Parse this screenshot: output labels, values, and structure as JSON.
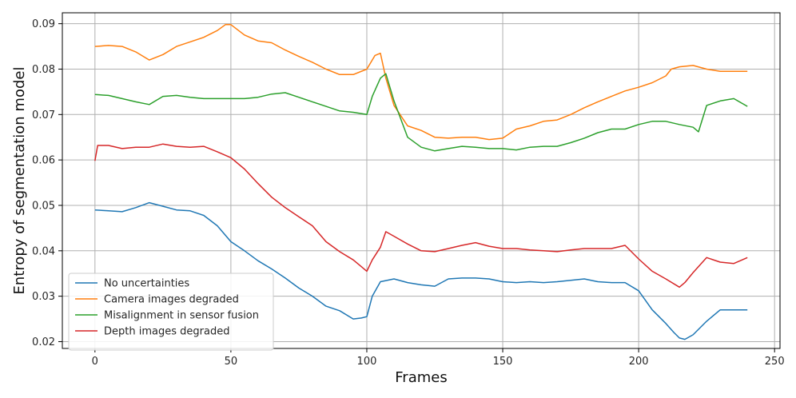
{
  "chart_data": {
    "type": "line",
    "title": "",
    "xlabel": "Frames",
    "ylabel": "Entropy of segmentation model",
    "xlim": [
      -12,
      252
    ],
    "ylim": [
      0.0185,
      0.0924
    ],
    "x_ticks": [
      0,
      50,
      100,
      150,
      200,
      250
    ],
    "y_ticks": [
      0.02,
      0.03,
      0.04,
      0.05,
      0.06,
      0.07,
      0.08,
      0.09
    ],
    "x_tick_labels": [
      "0",
      "50",
      "100",
      "150",
      "200",
      "250"
    ],
    "y_tick_labels": [
      "0.02",
      "0.03",
      "0.04",
      "0.05",
      "0.06",
      "0.07",
      "0.08",
      "0.09"
    ],
    "grid": true,
    "legend_position": "lower-left",
    "series": [
      {
        "name": "No uncertainties",
        "color": "#1f77b4",
        "points": [
          [
            0,
            0.049
          ],
          [
            5,
            0.0488
          ],
          [
            10,
            0.0486
          ],
          [
            15,
            0.0495
          ],
          [
            20,
            0.0506
          ],
          [
            25,
            0.0498
          ],
          [
            30,
            0.049
          ],
          [
            35,
            0.0488
          ],
          [
            40,
            0.0478
          ],
          [
            45,
            0.0455
          ],
          [
            50,
            0.042
          ],
          [
            55,
            0.04
          ],
          [
            60,
            0.0378
          ],
          [
            65,
            0.036
          ],
          [
            70,
            0.034
          ],
          [
            75,
            0.0318
          ],
          [
            80,
            0.03
          ],
          [
            85,
            0.0278
          ],
          [
            90,
            0.0268
          ],
          [
            95,
            0.025
          ],
          [
            98,
            0.0252
          ],
          [
            100,
            0.0255
          ],
          [
            102,
            0.03
          ],
          [
            105,
            0.0332
          ],
          [
            110,
            0.0338
          ],
          [
            115,
            0.033
          ],
          [
            120,
            0.0325
          ],
          [
            125,
            0.0322
          ],
          [
            130,
            0.0338
          ],
          [
            135,
            0.034
          ],
          [
            140,
            0.034
          ],
          [
            145,
            0.0338
          ],
          [
            150,
            0.0332
          ],
          [
            155,
            0.033
          ],
          [
            160,
            0.0332
          ],
          [
            165,
            0.033
          ],
          [
            170,
            0.0332
          ],
          [
            175,
            0.0335
          ],
          [
            180,
            0.0338
          ],
          [
            185,
            0.0332
          ],
          [
            190,
            0.033
          ],
          [
            195,
            0.033
          ],
          [
            200,
            0.0312
          ],
          [
            205,
            0.027
          ],
          [
            210,
            0.024
          ],
          [
            213,
            0.022
          ],
          [
            215,
            0.0208
          ],
          [
            217,
            0.0205
          ],
          [
            220,
            0.0215
          ],
          [
            225,
            0.0245
          ],
          [
            230,
            0.027
          ],
          [
            235,
            0.027
          ],
          [
            240,
            0.027
          ]
        ]
      },
      {
        "name": "Camera images degraded",
        "color": "#ff7f0e",
        "points": [
          [
            0,
            0.085
          ],
          [
            5,
            0.0852
          ],
          [
            10,
            0.085
          ],
          [
            15,
            0.0838
          ],
          [
            20,
            0.082
          ],
          [
            25,
            0.0832
          ],
          [
            30,
            0.085
          ],
          [
            35,
            0.086
          ],
          [
            40,
            0.087
          ],
          [
            45,
            0.0885
          ],
          [
            48,
            0.0898
          ],
          [
            50,
            0.0898
          ],
          [
            55,
            0.0875
          ],
          [
            60,
            0.0862
          ],
          [
            65,
            0.0858
          ],
          [
            70,
            0.0842
          ],
          [
            75,
            0.0828
          ],
          [
            80,
            0.0815
          ],
          [
            85,
            0.08
          ],
          [
            90,
            0.0788
          ],
          [
            95,
            0.0788
          ],
          [
            100,
            0.08
          ],
          [
            103,
            0.083
          ],
          [
            105,
            0.0835
          ],
          [
            107,
            0.078
          ],
          [
            110,
            0.072
          ],
          [
            115,
            0.0675
          ],
          [
            120,
            0.0665
          ],
          [
            125,
            0.065
          ],
          [
            130,
            0.0648
          ],
          [
            135,
            0.065
          ],
          [
            140,
            0.065
          ],
          [
            145,
            0.0645
          ],
          [
            150,
            0.0648
          ],
          [
            155,
            0.0668
          ],
          [
            160,
            0.0675
          ],
          [
            165,
            0.0685
          ],
          [
            170,
            0.0688
          ],
          [
            175,
            0.07
          ],
          [
            180,
            0.0715
          ],
          [
            185,
            0.0728
          ],
          [
            190,
            0.074
          ],
          [
            195,
            0.0752
          ],
          [
            200,
            0.076
          ],
          [
            205,
            0.077
          ],
          [
            210,
            0.0785
          ],
          [
            212,
            0.08
          ],
          [
            215,
            0.0805
          ],
          [
            220,
            0.0808
          ],
          [
            225,
            0.08
          ],
          [
            230,
            0.0795
          ],
          [
            235,
            0.0795
          ],
          [
            240,
            0.0795
          ]
        ]
      },
      {
        "name": "Misalignment in sensor fusion",
        "color": "#2ca02c",
        "points": [
          [
            0,
            0.0744
          ],
          [
            5,
            0.0742
          ],
          [
            10,
            0.0735
          ],
          [
            15,
            0.0728
          ],
          [
            20,
            0.0722
          ],
          [
            25,
            0.074
          ],
          [
            30,
            0.0742
          ],
          [
            35,
            0.0738
          ],
          [
            40,
            0.0735
          ],
          [
            45,
            0.0735
          ],
          [
            50,
            0.0735
          ],
          [
            55,
            0.0735
          ],
          [
            60,
            0.0738
          ],
          [
            65,
            0.0745
          ],
          [
            70,
            0.0748
          ],
          [
            75,
            0.0738
          ],
          [
            80,
            0.0728
          ],
          [
            85,
            0.0718
          ],
          [
            90,
            0.0708
          ],
          [
            95,
            0.0705
          ],
          [
            100,
            0.07
          ],
          [
            102,
            0.074
          ],
          [
            105,
            0.078
          ],
          [
            107,
            0.079
          ],
          [
            110,
            0.073
          ],
          [
            115,
            0.065
          ],
          [
            120,
            0.0628
          ],
          [
            125,
            0.062
          ],
          [
            130,
            0.0625
          ],
          [
            135,
            0.063
          ],
          [
            140,
            0.0628
          ],
          [
            145,
            0.0625
          ],
          [
            150,
            0.0625
          ],
          [
            155,
            0.0622
          ],
          [
            160,
            0.0628
          ],
          [
            165,
            0.063
          ],
          [
            170,
            0.063
          ],
          [
            175,
            0.0638
          ],
          [
            180,
            0.0648
          ],
          [
            185,
            0.066
          ],
          [
            190,
            0.0668
          ],
          [
            195,
            0.0668
          ],
          [
            200,
            0.0678
          ],
          [
            205,
            0.0685
          ],
          [
            210,
            0.0685
          ],
          [
            215,
            0.0678
          ],
          [
            220,
            0.0672
          ],
          [
            222,
            0.0662
          ],
          [
            225,
            0.072
          ],
          [
            230,
            0.073
          ],
          [
            235,
            0.0735
          ],
          [
            240,
            0.0718
          ]
        ]
      },
      {
        "name": "Depth images degraded",
        "color": "#d62728",
        "points": [
          [
            0,
            0.0598
          ],
          [
            1,
            0.0632
          ],
          [
            5,
            0.0632
          ],
          [
            10,
            0.0625
          ],
          [
            15,
            0.0628
          ],
          [
            20,
            0.0628
          ],
          [
            25,
            0.0635
          ],
          [
            30,
            0.063
          ],
          [
            35,
            0.0628
          ],
          [
            40,
            0.063
          ],
          [
            45,
            0.0618
          ],
          [
            50,
            0.0605
          ],
          [
            55,
            0.058
          ],
          [
            60,
            0.0548
          ],
          [
            65,
            0.0518
          ],
          [
            70,
            0.0495
          ],
          [
            75,
            0.0475
          ],
          [
            80,
            0.0455
          ],
          [
            85,
            0.042
          ],
          [
            90,
            0.0398
          ],
          [
            95,
            0.038
          ],
          [
            98,
            0.0365
          ],
          [
            100,
            0.0355
          ],
          [
            102,
            0.038
          ],
          [
            105,
            0.0408
          ],
          [
            107,
            0.0442
          ],
          [
            110,
            0.0432
          ],
          [
            115,
            0.0415
          ],
          [
            120,
            0.04
          ],
          [
            125,
            0.0398
          ],
          [
            130,
            0.0405
          ],
          [
            135,
            0.0412
          ],
          [
            140,
            0.0418
          ],
          [
            145,
            0.041
          ],
          [
            150,
            0.0405
          ],
          [
            155,
            0.0405
          ],
          [
            160,
            0.0402
          ],
          [
            165,
            0.04
          ],
          [
            170,
            0.0398
          ],
          [
            175,
            0.0402
          ],
          [
            180,
            0.0405
          ],
          [
            185,
            0.0405
          ],
          [
            190,
            0.0405
          ],
          [
            195,
            0.0412
          ],
          [
            200,
            0.0382
          ],
          [
            205,
            0.0355
          ],
          [
            210,
            0.0338
          ],
          [
            215,
            0.032
          ],
          [
            217,
            0.033
          ],
          [
            220,
            0.0352
          ],
          [
            225,
            0.0385
          ],
          [
            230,
            0.0375
          ],
          [
            235,
            0.0372
          ],
          [
            240,
            0.0385
          ]
        ]
      }
    ]
  }
}
